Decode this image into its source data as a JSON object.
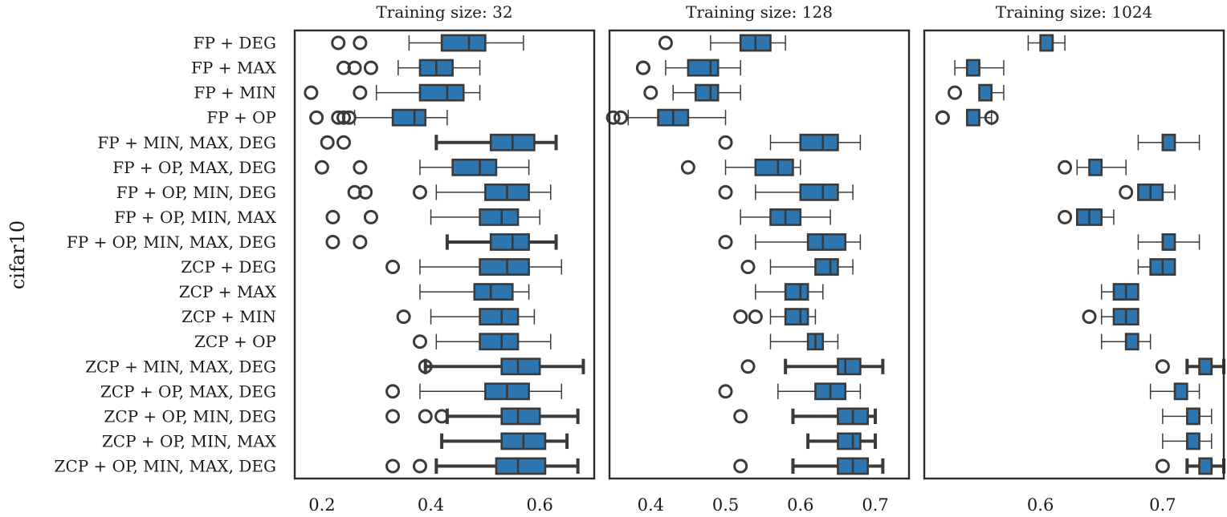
{
  "chart_data": {
    "type": "boxplot",
    "orientation": "horizontal",
    "ylabel": "cifar10",
    "categories": [
      "FP + DEG",
      "FP + MAX",
      "FP + MIN",
      "FP + OP",
      "FP + MIN, MAX, DEG",
      "FP + OP, MAX, DEG",
      "FP + OP, MIN, DEG",
      "FP + OP, MIN, MAX",
      "FP + OP, MIN, MAX, DEG",
      "ZCP + DEG",
      "ZCP + MAX",
      "ZCP + MIN",
      "ZCP + OP",
      "ZCP + MIN, MAX, DEG",
      "ZCP + OP, MAX, DEG",
      "ZCP + OP, MIN, DEG",
      "ZCP + OP, MIN, MAX",
      "ZCP + OP, MIN, MAX, DEG"
    ],
    "box_color": "#2e76b0",
    "edge_color": "#3a3a3a",
    "panels": [
      {
        "title": "Training size: 32",
        "xlim": [
          0.15,
          0.7
        ],
        "xticks": [
          0.2,
          0.4,
          0.6
        ],
        "xtick_labels": [
          "0.2",
          "0.4",
          "0.6"
        ],
        "boxes": [
          {
            "wlo": 0.36,
            "q1": 0.42,
            "med": 0.47,
            "q3": 0.5,
            "whi": 0.57,
            "fliers": [
              0.23,
              0.27
            ]
          },
          {
            "wlo": 0.34,
            "q1": 0.38,
            "med": 0.41,
            "q3": 0.44,
            "whi": 0.49,
            "fliers": [
              0.24,
              0.26,
              0.29
            ]
          },
          {
            "wlo": 0.3,
            "q1": 0.38,
            "med": 0.43,
            "q3": 0.46,
            "whi": 0.49,
            "fliers": [
              0.18,
              0.27
            ]
          },
          {
            "wlo": 0.26,
            "q1": 0.33,
            "med": 0.37,
            "q3": 0.39,
            "whi": 0.43,
            "fliers": [
              0.19,
              0.23,
              0.24,
              0.25
            ]
          },
          {
            "wlo": 0.41,
            "q1": 0.51,
            "med": 0.55,
            "q3": 0.59,
            "whi": 0.63,
            "fliers": [
              0.21,
              0.24
            ]
          },
          {
            "wlo": 0.38,
            "q1": 0.44,
            "med": 0.49,
            "q3": 0.52,
            "whi": 0.58,
            "fliers": [
              0.2,
              0.27
            ]
          },
          {
            "wlo": 0.41,
            "q1": 0.5,
            "med": 0.54,
            "q3": 0.58,
            "whi": 0.62,
            "fliers": [
              0.26,
              0.28,
              0.38
            ]
          },
          {
            "wlo": 0.4,
            "q1": 0.49,
            "med": 0.53,
            "q3": 0.56,
            "whi": 0.6,
            "fliers": [
              0.22,
              0.29
            ]
          },
          {
            "wlo": 0.43,
            "q1": 0.51,
            "med": 0.55,
            "q3": 0.58,
            "whi": 0.63,
            "fliers": [
              0.22,
              0.27
            ]
          },
          {
            "wlo": 0.38,
            "q1": 0.49,
            "med": 0.54,
            "q3": 0.58,
            "whi": 0.64,
            "fliers": [
              0.33
            ]
          },
          {
            "wlo": 0.38,
            "q1": 0.48,
            "med": 0.51,
            "q3": 0.55,
            "whi": 0.58,
            "fliers": []
          },
          {
            "wlo": 0.4,
            "q1": 0.49,
            "med": 0.53,
            "q3": 0.56,
            "whi": 0.59,
            "fliers": [
              0.35
            ]
          },
          {
            "wlo": 0.41,
            "q1": 0.49,
            "med": 0.53,
            "q3": 0.56,
            "whi": 0.62,
            "fliers": [
              0.38
            ]
          },
          {
            "wlo": 0.39,
            "q1": 0.53,
            "med": 0.56,
            "q3": 0.6,
            "whi": 0.68,
            "fliers": [
              0.39
            ]
          },
          {
            "wlo": 0.38,
            "q1": 0.5,
            "med": 0.54,
            "q3": 0.58,
            "whi": 0.64,
            "fliers": [
              0.33
            ]
          },
          {
            "wlo": 0.43,
            "q1": 0.53,
            "med": 0.56,
            "q3": 0.6,
            "whi": 0.67,
            "fliers": [
              0.33,
              0.39,
              0.42
            ]
          },
          {
            "wlo": 0.42,
            "q1": 0.53,
            "med": 0.57,
            "q3": 0.61,
            "whi": 0.65,
            "fliers": []
          },
          {
            "wlo": 0.41,
            "q1": 0.52,
            "med": 0.56,
            "q3": 0.61,
            "whi": 0.67,
            "fliers": [
              0.33,
              0.38
            ]
          }
        ]
      },
      {
        "title": "Training size: 128",
        "xlim": [
          0.345,
          0.745
        ],
        "xticks": [
          0.4,
          0.5,
          0.6,
          0.7
        ],
        "xtick_labels": [
          "0.4",
          "0.5",
          "0.6",
          "0.7"
        ],
        "boxes": [
          {
            "wlo": 0.48,
            "q1": 0.52,
            "med": 0.54,
            "q3": 0.56,
            "whi": 0.58,
            "fliers": [
              0.42
            ]
          },
          {
            "wlo": 0.42,
            "q1": 0.45,
            "med": 0.48,
            "q3": 0.49,
            "whi": 0.52,
            "fliers": [
              0.39,
              0.39
            ]
          },
          {
            "wlo": 0.43,
            "q1": 0.46,
            "med": 0.48,
            "q3": 0.49,
            "whi": 0.52,
            "fliers": [
              0.4
            ]
          },
          {
            "wlo": 0.37,
            "q1": 0.41,
            "med": 0.43,
            "q3": 0.45,
            "whi": 0.5,
            "fliers": [
              0.35,
              0.36
            ]
          },
          {
            "wlo": 0.56,
            "q1": 0.6,
            "med": 0.63,
            "q3": 0.65,
            "whi": 0.68,
            "fliers": [
              0.5
            ]
          },
          {
            "wlo": 0.5,
            "q1": 0.54,
            "med": 0.57,
            "q3": 0.59,
            "whi": 0.6,
            "fliers": [
              0.45
            ]
          },
          {
            "wlo": 0.54,
            "q1": 0.6,
            "med": 0.63,
            "q3": 0.65,
            "whi": 0.67,
            "fliers": [
              0.5
            ]
          },
          {
            "wlo": 0.52,
            "q1": 0.56,
            "med": 0.58,
            "q3": 0.6,
            "whi": 0.64,
            "fliers": []
          },
          {
            "wlo": 0.54,
            "q1": 0.61,
            "med": 0.63,
            "q3": 0.66,
            "whi": 0.68,
            "fliers": [
              0.5
            ]
          },
          {
            "wlo": 0.56,
            "q1": 0.62,
            "med": 0.64,
            "q3": 0.65,
            "whi": 0.67,
            "fliers": [
              0.53
            ]
          },
          {
            "wlo": 0.54,
            "q1": 0.58,
            "med": 0.6,
            "q3": 0.61,
            "whi": 0.63,
            "fliers": []
          },
          {
            "wlo": 0.56,
            "q1": 0.58,
            "med": 0.6,
            "q3": 0.61,
            "whi": 0.62,
            "fliers": [
              0.52,
              0.54
            ]
          },
          {
            "wlo": 0.56,
            "q1": 0.61,
            "med": 0.62,
            "q3": 0.63,
            "whi": 0.65,
            "fliers": []
          },
          {
            "wlo": 0.58,
            "q1": 0.65,
            "med": 0.66,
            "q3": 0.68,
            "whi": 0.71,
            "fliers": [
              0.53
            ]
          },
          {
            "wlo": 0.57,
            "q1": 0.62,
            "med": 0.64,
            "q3": 0.66,
            "whi": 0.68,
            "fliers": [
              0.5
            ]
          },
          {
            "wlo": 0.59,
            "q1": 0.65,
            "med": 0.67,
            "q3": 0.69,
            "whi": 0.7,
            "fliers": [
              0.52
            ]
          },
          {
            "wlo": 0.61,
            "q1": 0.65,
            "med": 0.67,
            "q3": 0.68,
            "whi": 0.7,
            "fliers": []
          },
          {
            "wlo": 0.59,
            "q1": 0.65,
            "med": 0.67,
            "q3": 0.69,
            "whi": 0.71,
            "fliers": [
              0.52
            ]
          }
        ]
      },
      {
        "title": "Training size: 1024",
        "xlim": [
          0.505,
          0.75
        ],
        "xticks": [
          0.6,
          0.7
        ],
        "xtick_labels": [
          "0.6",
          "0.7"
        ],
        "boxes": [
          {
            "wlo": 0.59,
            "q1": 0.6,
            "med": 0.61,
            "q3": 0.61,
            "whi": 0.62,
            "fliers": []
          },
          {
            "wlo": 0.53,
            "q1": 0.54,
            "med": 0.55,
            "q3": 0.55,
            "whi": 0.57,
            "fliers": []
          },
          {
            "wlo": 0.55,
            "q1": 0.55,
            "med": 0.56,
            "q3": 0.56,
            "whi": 0.57,
            "fliers": [
              0.53
            ]
          },
          {
            "wlo": 0.54,
            "q1": 0.54,
            "med": 0.55,
            "q3": 0.55,
            "whi": 0.56,
            "fliers": [
              0.52,
              0.52,
              0.56
            ]
          },
          {
            "wlo": 0.68,
            "q1": 0.7,
            "med": 0.7,
            "q3": 0.71,
            "whi": 0.73,
            "fliers": []
          },
          {
            "wlo": 0.63,
            "q1": 0.64,
            "med": 0.65,
            "q3": 0.65,
            "whi": 0.67,
            "fliers": [
              0.62
            ]
          },
          {
            "wlo": 0.68,
            "q1": 0.68,
            "med": 0.69,
            "q3": 0.7,
            "whi": 0.71,
            "fliers": [
              0.67
            ]
          },
          {
            "wlo": 0.63,
            "q1": 0.63,
            "med": 0.64,
            "q3": 0.65,
            "whi": 0.66,
            "fliers": [
              0.62
            ]
          },
          {
            "wlo": 0.68,
            "q1": 0.7,
            "med": 0.7,
            "q3": 0.71,
            "whi": 0.73,
            "fliers": []
          },
          {
            "wlo": 0.68,
            "q1": 0.69,
            "med": 0.7,
            "q3": 0.71,
            "whi": 0.71,
            "fliers": []
          },
          {
            "wlo": 0.65,
            "q1": 0.66,
            "med": 0.67,
            "q3": 0.68,
            "whi": 0.68,
            "fliers": []
          },
          {
            "wlo": 0.65,
            "q1": 0.66,
            "med": 0.67,
            "q3": 0.68,
            "whi": 0.68,
            "fliers": [
              0.64
            ]
          },
          {
            "wlo": 0.65,
            "q1": 0.67,
            "med": 0.67,
            "q3": 0.68,
            "whi": 0.69,
            "fliers": []
          },
          {
            "wlo": 0.72,
            "q1": 0.73,
            "med": 0.74,
            "q3": 0.74,
            "whi": 0.75,
            "fliers": [
              0.7
            ]
          },
          {
            "wlo": 0.69,
            "q1": 0.71,
            "med": 0.71,
            "q3": 0.72,
            "whi": 0.73,
            "fliers": []
          },
          {
            "wlo": 0.7,
            "q1": 0.72,
            "med": 0.73,
            "q3": 0.73,
            "whi": 0.74,
            "fliers": []
          },
          {
            "wlo": 0.7,
            "q1": 0.72,
            "med": 0.72,
            "q3": 0.73,
            "whi": 0.74,
            "fliers": []
          },
          {
            "wlo": 0.72,
            "q1": 0.73,
            "med": 0.74,
            "q3": 0.74,
            "whi": 0.75,
            "fliers": [
              0.7
            ]
          }
        ]
      }
    ]
  }
}
